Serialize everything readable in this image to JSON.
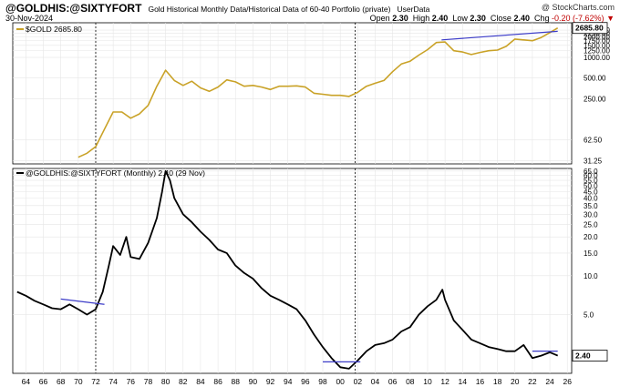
{
  "header": {
    "symbol": "@GOLDHIS:@SIXTYFORT",
    "subtitle": "Gold Historical Monthly Data/Historical Data of 60-40 Portfolio (private)",
    "userdata": "UserData",
    "brand": "@ StockCharts.com",
    "date": "30-Nov-2024",
    "open_label": "Open",
    "open_value": "2.30",
    "high_label": "High",
    "high_value": "2.40",
    "low_label": "Low",
    "low_value": "2.30",
    "close_label": "Close",
    "close_value": "2.40",
    "chg_label": "Chg",
    "chg_value": "-0.20 (-7.62%)",
    "down_arrow": "▼"
  },
  "colors": {
    "gold": "#c9a227",
    "ratio": "#000000",
    "trend": "#3c3cc8",
    "grid": "#e6e6e6"
  },
  "chart_data": [
    {
      "type": "line",
      "title": "$GOLD 2685.80",
      "legend": "$GOLD 2685.80",
      "scale": "log",
      "last_value_label": "2685.80",
      "y_ticks": [
        31.25,
        62.5,
        250.0,
        500.0,
        1000.0,
        1250.0,
        1500.0,
        1750.0,
        2000.0,
        2250.0,
        2500.0
      ],
      "y_tick_labels": [
        "31.25",
        "62.50",
        "250.00",
        "500.00",
        "1000.00",
        "1250.00",
        "1500.00",
        "1750.00",
        "2000.00",
        "2250.00",
        "2500.00"
      ],
      "x": [
        1970,
        1971,
        1972,
        1973,
        1974,
        1975,
        1976,
        1977,
        1978,
        1979,
        1980,
        1981,
        1982,
        1983,
        1984,
        1985,
        1986,
        1987,
        1988,
        1989,
        1990,
        1991,
        1992,
        1993,
        1994,
        1995,
        1996,
        1997,
        1998,
        1999,
        2000,
        2001,
        2002,
        2003,
        2004,
        2005,
        2006,
        2007,
        2008,
        2009,
        2010,
        2011,
        2012,
        2013,
        2014,
        2015,
        2016,
        2017,
        2018,
        2019,
        2020,
        2021,
        2022,
        2023,
        2024,
        2024.9
      ],
      "values": [
        35,
        40,
        50,
        90,
        160,
        160,
        130,
        150,
        200,
        380,
        650,
        460,
        390,
        450,
        360,
        320,
        370,
        470,
        440,
        380,
        390,
        370,
        340,
        380,
        380,
        385,
        370,
        300,
        290,
        280,
        280,
        270,
        310,
        380,
        420,
        460,
        620,
        800,
        880,
        1080,
        1300,
        1650,
        1680,
        1250,
        1200,
        1100,
        1180,
        1250,
        1280,
        1450,
        1850,
        1800,
        1750,
        1950,
        2300,
        2685.8
      ],
      "trendline": {
        "x": [
          2011.6,
          2024.9
        ],
        "values": [
          1800,
          2400
        ]
      },
      "marker_years": [
        1972,
        2001.7
      ]
    },
    {
      "type": "line",
      "title": "@GOLDHIS:@SIXTYFORT (Monthly) 2.40 (29 Nov)",
      "legend": "@GOLDHIS:@SIXTYFORT (Monthly) 2.40 (29 Nov)",
      "scale": "log",
      "last_value_label": "2.40",
      "y_ticks": [
        5.0,
        10.0,
        15.0,
        20.0,
        25.0,
        30.0,
        35.0,
        40.0,
        45.0,
        50.0,
        55.0,
        60.0,
        65.0
      ],
      "y_tick_labels": [
        "5.0",
        "10.0",
        "15.0",
        "20.0",
        "25.0",
        "30.0",
        "35.0",
        "40.0",
        "45.0",
        "50.0",
        "55.0",
        "60.0",
        "65.0"
      ],
      "x_ticks": [
        1964,
        1966,
        1968,
        1970,
        1972,
        1974,
        1976,
        1978,
        1980,
        1982,
        1984,
        1986,
        1988,
        1990,
        1992,
        1994,
        1996,
        1998,
        2000,
        2002,
        2004,
        2006,
        2008,
        2010,
        2012,
        2014,
        2016,
        2018,
        2020,
        2022,
        2024,
        2026
      ],
      "x_tick_labels": [
        "64",
        "66",
        "68",
        "70",
        "72",
        "74",
        "76",
        "78",
        "80",
        "82",
        "84",
        "86",
        "88",
        "90",
        "92",
        "94",
        "96",
        "98",
        "00",
        "02",
        "04",
        "06",
        "08",
        "10",
        "12",
        "14",
        "16",
        "18",
        "20",
        "22",
        "24",
        "26"
      ],
      "x": [
        1963,
        1964,
        1965,
        1966,
        1967,
        1968,
        1969,
        1970,
        1971,
        1972,
        1972.8,
        1973.5,
        1974,
        1974.8,
        1975.5,
        1976,
        1977,
        1978,
        1979,
        1979.6,
        1980,
        1980.5,
        1981,
        1982,
        1983,
        1984,
        1985,
        1986,
        1987,
        1988,
        1989,
        1990,
        1991,
        1992,
        1993,
        1994,
        1995,
        1996,
        1997,
        1998,
        1999,
        2000,
        2001,
        2002,
        2003,
        2004,
        2005,
        2006,
        2007,
        2008,
        2009,
        2010,
        2011,
        2011.7,
        2012,
        2013,
        2014,
        2015,
        2016,
        2017,
        2018,
        2019,
        2020,
        2021,
        2022,
        2023,
        2024,
        2024.9
      ],
      "values": [
        7.5,
        7.0,
        6.4,
        6.0,
        5.6,
        5.5,
        6.0,
        5.5,
        5.0,
        5.5,
        7.5,
        12.0,
        17.0,
        14.5,
        20.0,
        14.0,
        13.5,
        18.0,
        28.0,
        45.0,
        65.0,
        55.0,
        40.0,
        30.0,
        26.0,
        22.0,
        19.0,
        16.0,
        15.0,
        12.0,
        10.5,
        9.5,
        8.0,
        7.0,
        6.5,
        6.0,
        5.5,
        4.5,
        3.5,
        2.8,
        2.3,
        1.95,
        1.9,
        2.2,
        2.6,
        2.9,
        3.0,
        3.2,
        3.7,
        4.0,
        5.0,
        5.8,
        6.5,
        7.8,
        6.5,
        4.5,
        3.8,
        3.2,
        3.0,
        2.8,
        2.7,
        2.6,
        2.6,
        2.9,
        2.3,
        2.4,
        2.55,
        2.4
      ],
      "trendlines": [
        {
          "x": [
            1968,
            1973
          ],
          "values": [
            6.6,
            6.0
          ]
        },
        {
          "x": [
            1998,
            2002.3
          ],
          "values": [
            2.15,
            2.15
          ]
        },
        {
          "x": [
            2022,
            2024.9
          ],
          "values": [
            2.6,
            2.6
          ]
        }
      ],
      "marker_years": [
        1972,
        2001.7
      ]
    }
  ]
}
